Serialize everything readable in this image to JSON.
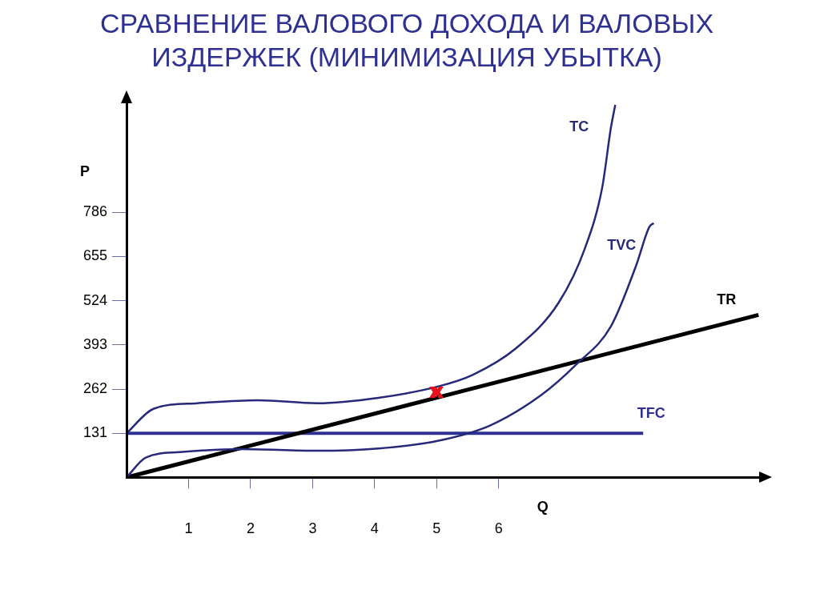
{
  "chart_data": {
    "type": "line",
    "title": "СРАВНЕНИЕ ВАЛОВОГО ДОХОДА И ВАЛОВЫХ ИЗДЕРЖЕК (МИНИМИЗАЦИЯ УБЫТКА)",
    "xlabel": "Q",
    "ylabel": "P",
    "xlim": [
      0,
      10.2
    ],
    "xticks": [
      1,
      2,
      3,
      4,
      5,
      6
    ],
    "ylim": [
      0,
      1110
    ],
    "yticks": [
      131,
      262,
      393,
      524,
      655,
      786
    ],
    "grid": false,
    "legend": false,
    "marker": "none",
    "line_style": "solid",
    "series": [
      {
        "name": "TC",
        "color": "#26287a",
        "x": [
          0,
          0.44,
          1.14,
          2.11,
          3.08,
          4.06,
          5.03,
          5.58,
          6.28,
          6.97,
          7.39,
          7.67,
          7.81,
          7.88
        ],
        "values": [
          131,
          204,
          220,
          229,
          220,
          236,
          270,
          304,
          383,
          519,
          679,
          860,
          1037,
          1105
        ]
      },
      {
        "name": "TVC",
        "color": "#26287a",
        "x": [
          0,
          0.31,
          0.86,
          1.83,
          3.08,
          4.06,
          5.03,
          5.86,
          6.69,
          7.25,
          7.81,
          8.22,
          8.43,
          8.5
        ],
        "values": [
          0,
          59,
          75,
          84,
          79,
          86,
          109,
          154,
          245,
          335,
          448,
          630,
          743,
          754
        ]
      },
      {
        "name": "TR",
        "color": "#000000",
        "x": [
          0,
          10.19
        ],
        "values": [
          0,
          482
        ]
      },
      {
        "name": "TFC",
        "color": "#2e3192",
        "x": [
          0,
          8.33
        ],
        "values": [
          131,
          131
        ]
      }
    ]
  }
}
